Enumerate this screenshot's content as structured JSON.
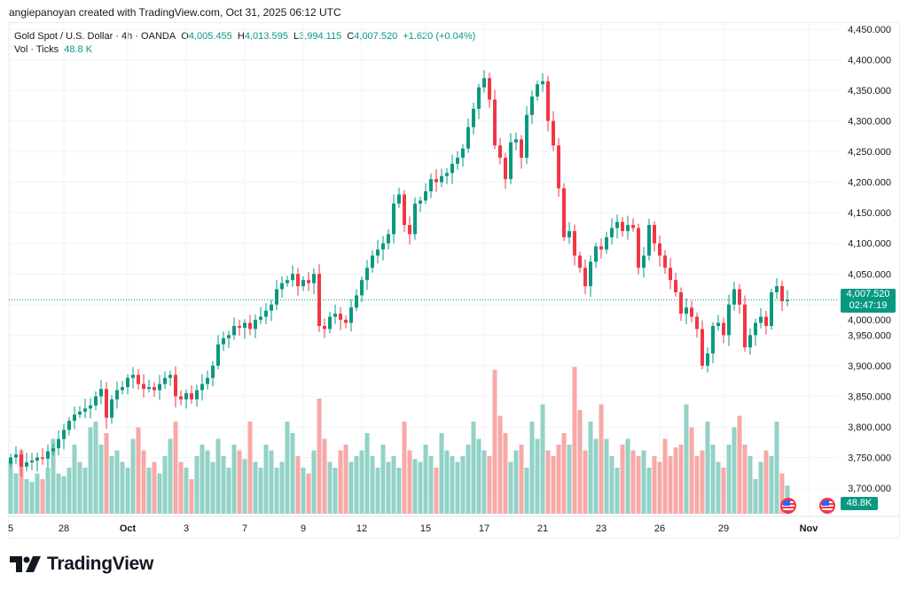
{
  "credit": "angiepanoyan created with TradingView.com, Oct 31, 2025 06:12 UTC",
  "legend": {
    "symbol": "Gold Spot / U.S. Dollar · 4h · OANDA",
    "o_label": "O",
    "o": "4,005.455",
    "h_label": "H",
    "h": "4,013.595",
    "l_label": "L",
    "l": "3,994.115",
    "c_label": "C",
    "c": "4,007.520",
    "change": "+1.620 (+0.04%)",
    "vol_label": "Vol · Ticks",
    "vol": "48.8 K"
  },
  "price_tag": {
    "price": "4,007.520",
    "countdown": "02:47:19"
  },
  "volume_tag": "48.8K",
  "logo_text": "TradingView",
  "colors": {
    "up": "#089981",
    "down": "#f23645",
    "vol_up": "#92d2c7",
    "vol_down": "#f7a9a7"
  },
  "chart_data": {
    "type": "candlestick",
    "title": "Gold Spot / U.S. Dollar · 4h · OANDA",
    "ylim": [
      3680,
      4460
    ],
    "yticks": [
      4450,
      4400,
      4350,
      4300,
      4250,
      4200,
      4150,
      4100,
      4050,
      4000,
      3950,
      3900,
      3850,
      3800,
      3750,
      3700
    ],
    "ytick_labels": [
      "4,450.000",
      "4,400.000",
      "4,350.000",
      "4,300.000",
      "4,250.000",
      "4,200.000",
      "4,150.000",
      "4,100.000",
      "4,050.000",
      "4,000.000",
      "3,950.000",
      "3,900.000",
      "3,850.000",
      "3,800.000",
      "3,750.000",
      "3,700.000"
    ],
    "xticks": [
      {
        "label": "5",
        "index": 0
      },
      {
        "label": "28",
        "index": 10
      },
      {
        "label": "Oct",
        "index": 22,
        "bold": true
      },
      {
        "label": "3",
        "index": 33
      },
      {
        "label": "7",
        "index": 44
      },
      {
        "label": "9",
        "index": 55
      },
      {
        "label": "12",
        "index": 66
      },
      {
        "label": "15",
        "index": 78
      },
      {
        "label": "17",
        "index": 89
      },
      {
        "label": "21",
        "index": 100
      },
      {
        "label": "23",
        "index": 111
      },
      {
        "label": "26",
        "index": 122
      },
      {
        "label": "29",
        "index": 134
      },
      {
        "label": "Nov",
        "index": 150,
        "bold": true
      }
    ],
    "first_open": 3740,
    "closes": [
      3750,
      3755,
      3735,
      3742,
      3745,
      3750,
      3748,
      3760,
      3765,
      3780,
      3795,
      3810,
      3820,
      3825,
      3830,
      3835,
      3850,
      3862,
      3815,
      3845,
      3860,
      3865,
      3880,
      3885,
      3870,
      3862,
      3865,
      3860,
      3870,
      3880,
      3885,
      3850,
      3845,
      3855,
      3845,
      3860,
      3870,
      3880,
      3900,
      3935,
      3945,
      3950,
      3965,
      3962,
      3970,
      3960,
      3975,
      3980,
      3990,
      4000,
      4025,
      4035,
      4040,
      4050,
      4030,
      4040,
      4035,
      4050,
      3965,
      3960,
      3980,
      3985,
      3975,
      3970,
      3995,
      4015,
      4040,
      4060,
      4080,
      4090,
      4100,
      4115,
      4165,
      4180,
      4130,
      4115,
      4165,
      4170,
      4185,
      4205,
      4200,
      4210,
      4215,
      4230,
      4240,
      4255,
      4290,
      4320,
      4355,
      4370,
      4335,
      4260,
      4240,
      4205,
      4265,
      4270,
      4240,
      4310,
      4340,
      4360,
      4365,
      4300,
      4260,
      4190,
      4110,
      4120,
      4080,
      4060,
      4030,
      4070,
      4095,
      4090,
      4110,
      4125,
      4135,
      4120,
      4130,
      4125,
      4060,
      4080,
      4130,
      4100,
      4080,
      4060,
      4040,
      4020,
      3985,
      3995,
      3980,
      3960,
      3900,
      3920,
      3965,
      3970,
      3950,
      4000,
      4025,
      4000,
      3930,
      3950,
      3970,
      3980,
      3965,
      4020,
      4030,
      4005.455,
      4007.52
    ],
    "volumes_k": [
      90,
      70,
      110,
      60,
      55,
      70,
      60,
      80,
      130,
      70,
      65,
      80,
      120,
      90,
      80,
      150,
      160,
      120,
      140,
      100,
      110,
      90,
      80,
      130,
      150,
      110,
      80,
      90,
      70,
      100,
      130,
      160,
      90,
      80,
      60,
      100,
      120,
      110,
      90,
      130,
      100,
      80,
      120,
      110,
      95,
      160,
      90,
      80,
      120,
      110,
      80,
      90,
      160,
      140,
      100,
      80,
      70,
      110,
      200,
      130,
      90,
      80,
      110,
      120,
      90,
      100,
      110,
      140,
      100,
      80,
      120,
      90,
      100,
      80,
      160,
      110,
      95,
      90,
      120,
      100,
      80,
      140,
      110,
      100,
      90,
      100,
      120,
      160,
      130,
      110,
      100,
      250,
      170,
      140,
      90,
      110,
      120,
      80,
      160,
      130,
      190,
      110,
      100,
      120,
      140,
      120,
      255,
      180,
      110,
      160,
      130,
      190,
      130,
      100,
      80,
      120,
      130,
      110,
      100,
      110,
      80,
      100,
      90,
      130,
      100,
      115,
      120,
      190,
      150,
      100,
      110,
      160,
      120,
      90,
      80,
      120,
      150,
      170,
      120,
      100,
      60,
      90,
      110,
      100,
      160,
      70,
      48.8
    ]
  }
}
